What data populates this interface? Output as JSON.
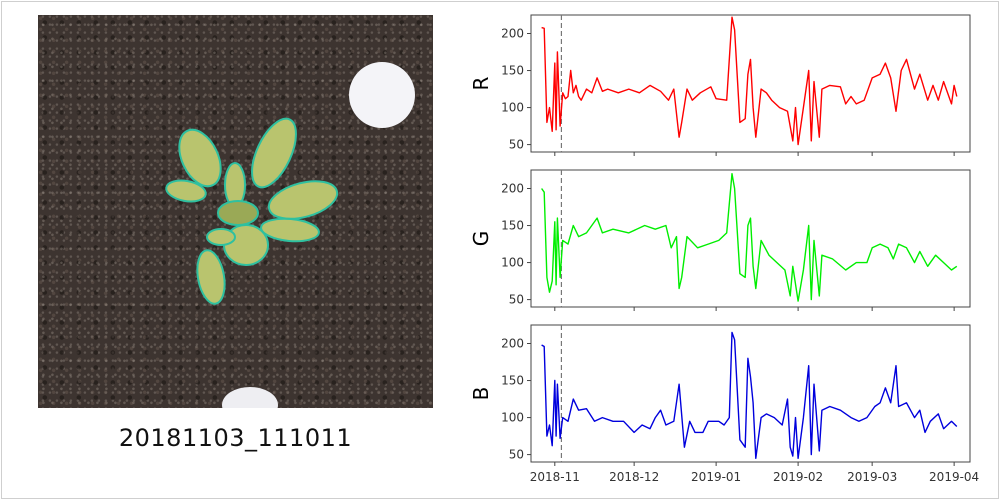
{
  "caption": "20181103_111011",
  "colors": {
    "R": "#ff0000",
    "G": "#00ee00",
    "B": "#0000dd",
    "marker": "#777777"
  },
  "chart_data": [
    {
      "type": "line",
      "ylabel": "R",
      "ylim": [
        40,
        225
      ],
      "yticks": [
        50,
        100,
        150,
        200
      ],
      "x_unit": "days since 2018-11-01",
      "xlim": [
        -9,
        157
      ],
      "marker_day": 2.5,
      "xtick_labels": [
        "2018-11",
        "2018-12",
        "2019-01",
        "2019-02",
        "2019-03",
        "2019-04"
      ],
      "xtick_days": [
        0,
        30,
        61,
        92,
        120,
        151
      ],
      "values": [
        [
          -5,
          208
        ],
        [
          -4,
          207
        ],
        [
          -3,
          80
        ],
        [
          -2,
          100
        ],
        [
          -1,
          68
        ],
        [
          0,
          160
        ],
        [
          0.5,
          70
        ],
        [
          1,
          175
        ],
        [
          2,
          75
        ],
        [
          3,
          120
        ],
        [
          4,
          112
        ],
        [
          5,
          115
        ],
        [
          6,
          150
        ],
        [
          7,
          120
        ],
        [
          8,
          130
        ],
        [
          9,
          115
        ],
        [
          10,
          110
        ],
        [
          12,
          125
        ],
        [
          14,
          120
        ],
        [
          16,
          140
        ],
        [
          18,
          122
        ],
        [
          20,
          125
        ],
        [
          24,
          120
        ],
        [
          28,
          125
        ],
        [
          32,
          120
        ],
        [
          36,
          130
        ],
        [
          40,
          122
        ],
        [
          43,
          110
        ],
        [
          45,
          125
        ],
        [
          47,
          60
        ],
        [
          48,
          80
        ],
        [
          50,
          125
        ],
        [
          52,
          110
        ],
        [
          55,
          120
        ],
        [
          59,
          128
        ],
        [
          61,
          112
        ],
        [
          65,
          110
        ],
        [
          67,
          222
        ],
        [
          68,
          205
        ],
        [
          70,
          80
        ],
        [
          72,
          85
        ],
        [
          73,
          145
        ],
        [
          74,
          165
        ],
        [
          75,
          100
        ],
        [
          76,
          60
        ],
        [
          78,
          125
        ],
        [
          80,
          120
        ],
        [
          82,
          110
        ],
        [
          85,
          100
        ],
        [
          88,
          95
        ],
        [
          90,
          55
        ],
        [
          91,
          100
        ],
        [
          92,
          50
        ],
        [
          94,
          100
        ],
        [
          96,
          150
        ],
        [
          97,
          55
        ],
        [
          98,
          135
        ],
        [
          100,
          60
        ],
        [
          101,
          125
        ],
        [
          104,
          130
        ],
        [
          108,
          128
        ],
        [
          110,
          105
        ],
        [
          112,
          115
        ],
        [
          114,
          105
        ],
        [
          117,
          110
        ],
        [
          120,
          140
        ],
        [
          123,
          145
        ],
        [
          125,
          160
        ],
        [
          127,
          140
        ],
        [
          129,
          95
        ],
        [
          131,
          150
        ],
        [
          133,
          165
        ],
        [
          136,
          125
        ],
        [
          138,
          145
        ],
        [
          141,
          110
        ],
        [
          143,
          130
        ],
        [
          145,
          110
        ],
        [
          147,
          135
        ],
        [
          150,
          105
        ],
        [
          151,
          130
        ],
        [
          152,
          115
        ]
      ]
    },
    {
      "type": "line",
      "ylabel": "G",
      "ylim": [
        40,
        225
      ],
      "yticks": [
        50,
        100,
        150,
        200
      ],
      "x_unit": "days since 2018-11-01",
      "xlim": [
        -9,
        157
      ],
      "marker_day": 2.5,
      "xtick_labels": [
        "2018-11",
        "2018-12",
        "2019-01",
        "2019-02",
        "2019-03",
        "2019-04"
      ],
      "xtick_days": [
        0,
        30,
        61,
        92,
        120,
        151
      ],
      "values": [
        [
          -5,
          200
        ],
        [
          -4,
          195
        ],
        [
          -3,
          80
        ],
        [
          -2,
          60
        ],
        [
          -1,
          75
        ],
        [
          0,
          155
        ],
        [
          0.5,
          70
        ],
        [
          1,
          160
        ],
        [
          2,
          80
        ],
        [
          3,
          130
        ],
        [
          5,
          125
        ],
        [
          7,
          150
        ],
        [
          9,
          135
        ],
        [
          12,
          140
        ],
        [
          16,
          160
        ],
        [
          18,
          140
        ],
        [
          22,
          145
        ],
        [
          28,
          140
        ],
        [
          34,
          150
        ],
        [
          38,
          145
        ],
        [
          42,
          150
        ],
        [
          44,
          120
        ],
        [
          46,
          135
        ],
        [
          47,
          65
        ],
        [
          48,
          80
        ],
        [
          50,
          135
        ],
        [
          54,
          120
        ],
        [
          58,
          125
        ],
        [
          62,
          130
        ],
        [
          65,
          140
        ],
        [
          67,
          220
        ],
        [
          68,
          200
        ],
        [
          70,
          85
        ],
        [
          72,
          80
        ],
        [
          73,
          150
        ],
        [
          74,
          160
        ],
        [
          75,
          95
        ],
        [
          76,
          65
        ],
        [
          78,
          130
        ],
        [
          81,
          110
        ],
        [
          84,
          100
        ],
        [
          87,
          90
        ],
        [
          89,
          55
        ],
        [
          90,
          95
        ],
        [
          92,
          48
        ],
        [
          94,
          90
        ],
        [
          96,
          150
        ],
        [
          97,
          50
        ],
        [
          98,
          130
        ],
        [
          100,
          55
        ],
        [
          101,
          110
        ],
        [
          105,
          105
        ],
        [
          110,
          90
        ],
        [
          114,
          100
        ],
        [
          118,
          100
        ],
        [
          120,
          120
        ],
        [
          123,
          125
        ],
        [
          126,
          120
        ],
        [
          128,
          105
        ],
        [
          130,
          125
        ],
        [
          133,
          120
        ],
        [
          136,
          100
        ],
        [
          138,
          115
        ],
        [
          141,
          95
        ],
        [
          144,
          110
        ],
        [
          147,
          100
        ],
        [
          150,
          90
        ],
        [
          152,
          95
        ]
      ]
    },
    {
      "type": "line",
      "ylabel": "B",
      "ylim": [
        40,
        225
      ],
      "yticks": [
        50,
        100,
        150,
        200
      ],
      "x_unit": "days since 2018-11-01",
      "xlim": [
        -9,
        157
      ],
      "marker_day": 2.5,
      "xtick_labels": [
        "2018-11",
        "2018-12",
        "2019-01",
        "2019-02",
        "2019-03",
        "2019-04"
      ],
      "xtick_days": [
        0,
        30,
        61,
        92,
        120,
        151
      ],
      "values": [
        [
          -5,
          198
        ],
        [
          -4,
          196
        ],
        [
          -3,
          75
        ],
        [
          -2,
          90
        ],
        [
          -1,
          62
        ],
        [
          0,
          150
        ],
        [
          0.5,
          75
        ],
        [
          1,
          145
        ],
        [
          2,
          72
        ],
        [
          3,
          100
        ],
        [
          5,
          95
        ],
        [
          7,
          125
        ],
        [
          9,
          110
        ],
        [
          12,
          112
        ],
        [
          15,
          95
        ],
        [
          18,
          100
        ],
        [
          22,
          95
        ],
        [
          26,
          95
        ],
        [
          30,
          80
        ],
        [
          33,
          90
        ],
        [
          36,
          85
        ],
        [
          38,
          100
        ],
        [
          40,
          110
        ],
        [
          42,
          90
        ],
        [
          45,
          95
        ],
        [
          47,
          145
        ],
        [
          49,
          60
        ],
        [
          51,
          95
        ],
        [
          53,
          80
        ],
        [
          56,
          80
        ],
        [
          58,
          95
        ],
        [
          62,
          95
        ],
        [
          64,
          90
        ],
        [
          66,
          100
        ],
        [
          67,
          215
        ],
        [
          68,
          205
        ],
        [
          70,
          70
        ],
        [
          72,
          60
        ],
        [
          73,
          180
        ],
        [
          74,
          155
        ],
        [
          75,
          120
        ],
        [
          76,
          45
        ],
        [
          78,
          100
        ],
        [
          80,
          105
        ],
        [
          83,
          100
        ],
        [
          86,
          90
        ],
        [
          88,
          125
        ],
        [
          89,
          60
        ],
        [
          90,
          48
        ],
        [
          91,
          100
        ],
        [
          92,
          45
        ],
        [
          94,
          100
        ],
        [
          96,
          170
        ],
        [
          97,
          50
        ],
        [
          98,
          145
        ],
        [
          100,
          55
        ],
        [
          101,
          110
        ],
        [
          104,
          115
        ],
        [
          108,
          110
        ],
        [
          112,
          100
        ],
        [
          115,
          95
        ],
        [
          118,
          100
        ],
        [
          121,
          115
        ],
        [
          123,
          120
        ],
        [
          125,
          140
        ],
        [
          127,
          120
        ],
        [
          129,
          170
        ],
        [
          130,
          115
        ],
        [
          133,
          120
        ],
        [
          136,
          100
        ],
        [
          138,
          110
        ],
        [
          140,
          80
        ],
        [
          142,
          95
        ],
        [
          145,
          105
        ],
        [
          147,
          85
        ],
        [
          150,
          95
        ],
        [
          152,
          88
        ]
      ]
    }
  ]
}
